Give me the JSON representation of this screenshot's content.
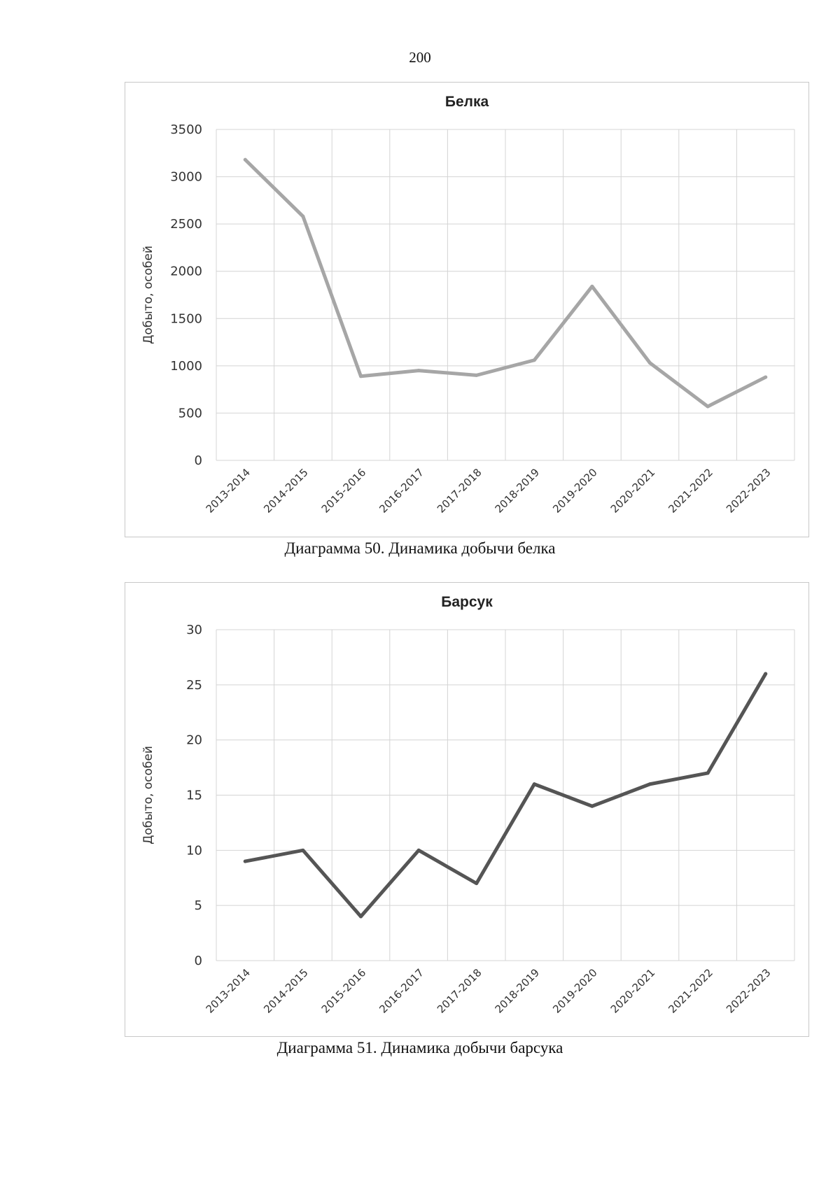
{
  "page": {
    "number": "200"
  },
  "chart_data": [
    {
      "type": "line",
      "title": "Белка",
      "caption": "Диаграмма 50. Динамика добычи белка",
      "xlabel": "",
      "ylabel": "Добыто, особей",
      "categories": [
        "2013-2014",
        "2014-2015",
        "2015-2016",
        "2016-2017",
        "2017-2018",
        "2018-2019",
        "2019-2020",
        "2020-2021",
        "2021-2022",
        "2022-2023"
      ],
      "values": [
        3180,
        2580,
        890,
        950,
        900,
        1060,
        1840,
        1030,
        570,
        880
      ],
      "ylim": [
        0,
        3500
      ],
      "yticks": [
        "0",
        "500",
        "1000",
        "1500",
        "2000",
        "2500",
        "3000",
        "3500"
      ],
      "grid": true,
      "line_color": "#a6a6a6"
    },
    {
      "type": "line",
      "title": "Барсук",
      "caption": "Диаграмма 51. Динамика добычи барсука",
      "xlabel": "",
      "ylabel": "Добыто, особей",
      "categories": [
        "2013-2014",
        "2014-2015",
        "2015-2016",
        "2016-2017",
        "2017-2018",
        "2018-2019",
        "2019-2020",
        "2020-2021",
        "2021-2022",
        "2022-2023"
      ],
      "values": [
        9,
        10,
        4,
        10,
        7,
        16,
        14,
        16,
        17,
        26
      ],
      "ylim": [
        0,
        30
      ],
      "yticks": [
        "0",
        "5",
        "10",
        "15",
        "20",
        "25",
        "30"
      ],
      "grid": true,
      "line_color": "#555555"
    }
  ]
}
